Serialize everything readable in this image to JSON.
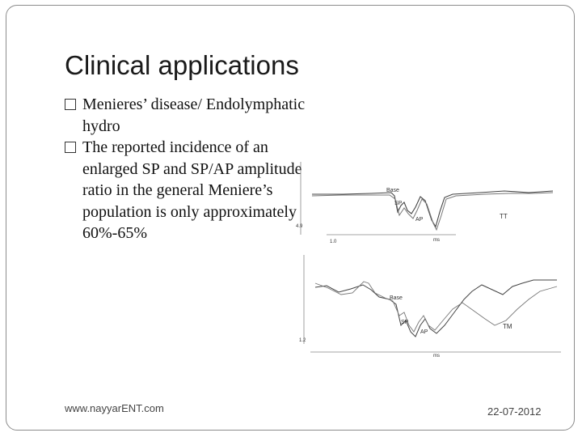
{
  "slide": {
    "title": "Clinical applications",
    "bullets": [
      {
        "text": "Menieres’ disease/ Endolymphatic hydro"
      },
      {
        "text": "The reported incidence of an enlarged SP and SP/AP amplitude ratio in the general Meniere’s population is only approximately 60%-65%"
      }
    ],
    "footer_left": "www.nayyarENT.com",
    "footer_right": "22-07-2012"
  },
  "figure": {
    "top_panel": {
      "base_label": "Base",
      "sp_label": "SP",
      "ap_label": "AP",
      "side_label": "TT",
      "y_value": "4.9",
      "x_value": "1.0",
      "x_unit": "ms"
    },
    "bottom_panel": {
      "base_label": "Base",
      "sp_label": "SP",
      "ap_label": "AP",
      "side_label": "TM",
      "y_value": "1.2",
      "x_unit": "ms"
    }
  }
}
